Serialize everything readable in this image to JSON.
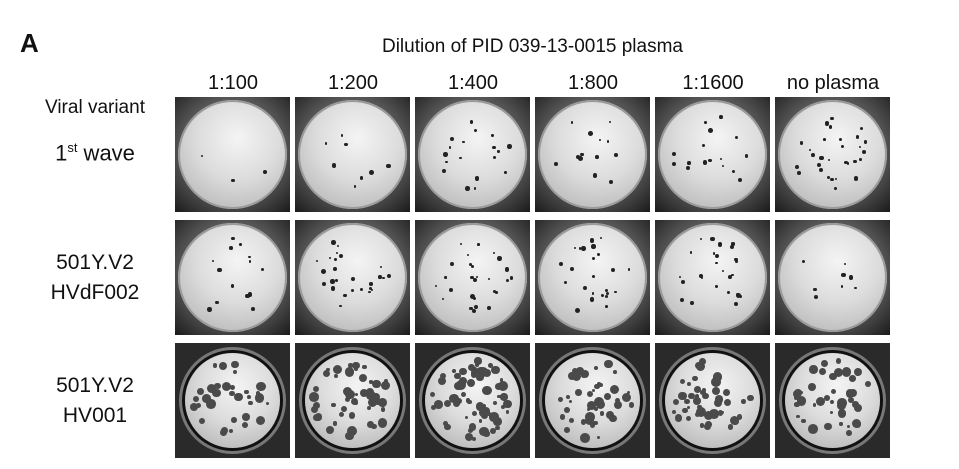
{
  "figure": {
    "panel_letter": "A",
    "title": "Dilution of PID 039-13-0015 plasma",
    "row_header": "Viral variant",
    "columns": [
      "1:100",
      "1:200",
      "1:400",
      "1:800",
      "1:1600",
      "no plasma"
    ],
    "rows": [
      {
        "label_main": "1",
        "label_sup": "st",
        "label_rest": " wave",
        "style": "sparse"
      },
      {
        "line1": "501Y.V2",
        "line2": "HVdF002",
        "style": "small"
      },
      {
        "line1": "501Y.V2",
        "line2": "HV001",
        "style": "large"
      }
    ],
    "plaque_counts": [
      [
        3,
        8,
        18,
        14,
        16,
        30
      ],
      [
        14,
        26,
        28,
        24,
        26,
        8
      ],
      [
        35,
        50,
        70,
        45,
        45,
        45
      ]
    ]
  }
}
